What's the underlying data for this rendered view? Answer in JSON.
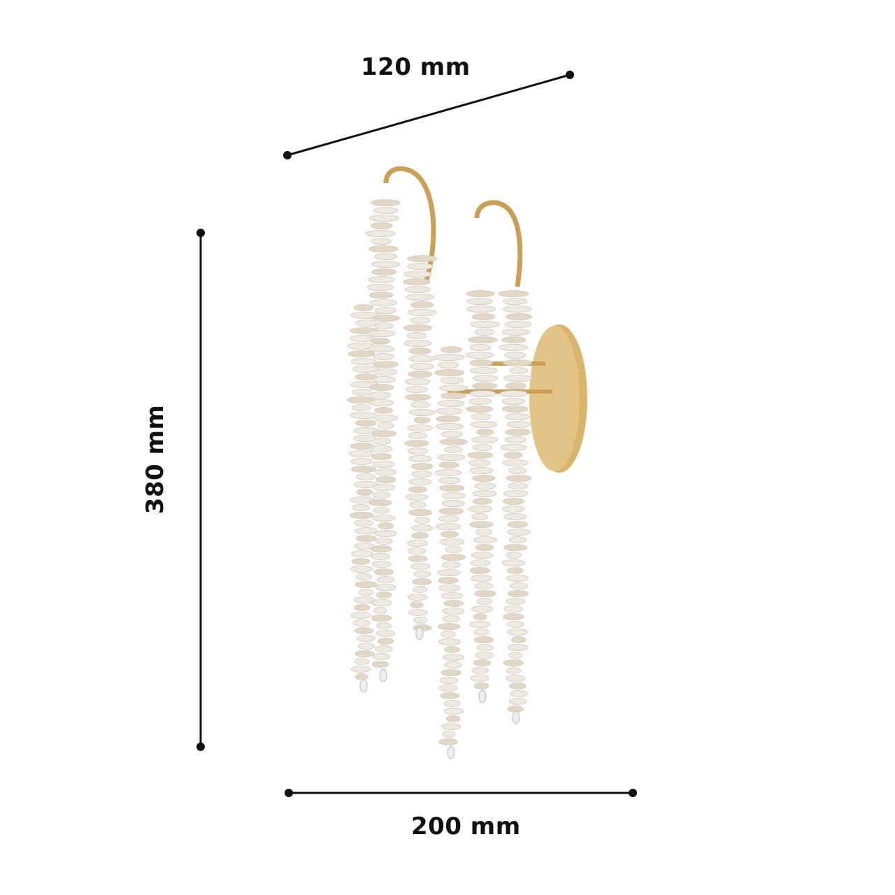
{
  "dimensions": {
    "depth_label": "120 mm",
    "height_label": "380 mm",
    "width_label": "200 mm"
  },
  "colors": {
    "line": "#111111",
    "gold": "#d4ad63",
    "crystal": "#e9e4dc"
  }
}
